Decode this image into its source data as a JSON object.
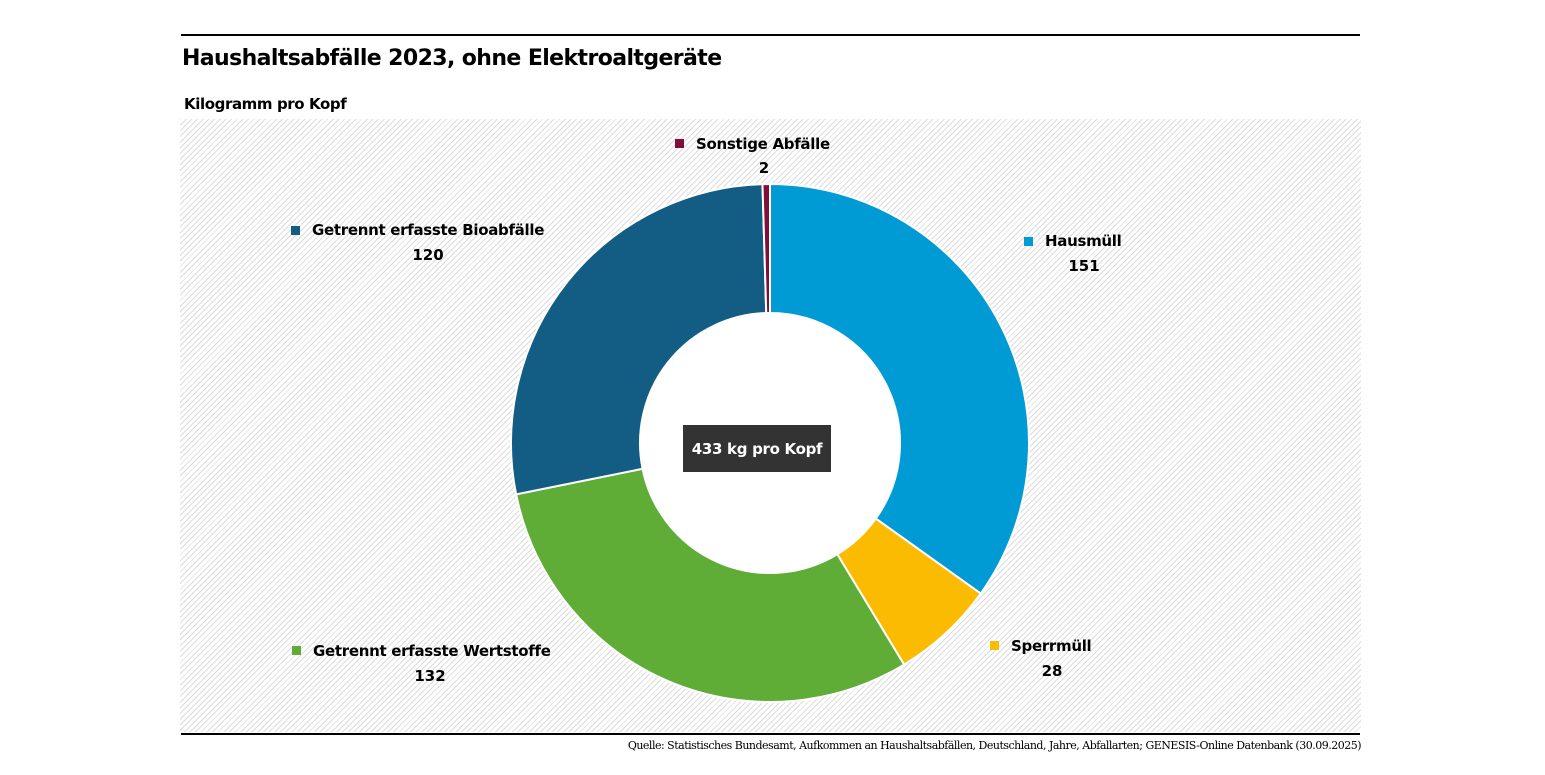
{
  "chart_data": {
    "type": "pie",
    "variant": "donut",
    "title": "Haushaltsabfälle 2023, ohne Elektroaltgeräte",
    "subtitle": "Kilogramm pro Kopf",
    "center_label": "433 kg pro Kopf",
    "total": 433,
    "categories": [
      "Hausmüll",
      "Sperrmüll",
      "Getrennt erfasste Wertstoffe",
      "Getrennt erfasste Bioabfälle",
      "Sonstige Abfälle"
    ],
    "values": [
      151,
      28,
      132,
      120,
      2
    ],
    "value_labels": [
      "151",
      "28",
      "132",
      "120",
      "2"
    ],
    "colors": [
      "#009bd5",
      "#fbbb00",
      "#5fad37",
      "#135d85",
      "#820e3c"
    ],
    "start_angle": "top",
    "direction": "clockwise",
    "source": "Quelle: Statistisches Bundesamt, Aufkommen an Haushaltsabfällen, Deutschland, Jahre, Abfallarten; GENESIS-Online Datenbank (30.09.2025)"
  }
}
